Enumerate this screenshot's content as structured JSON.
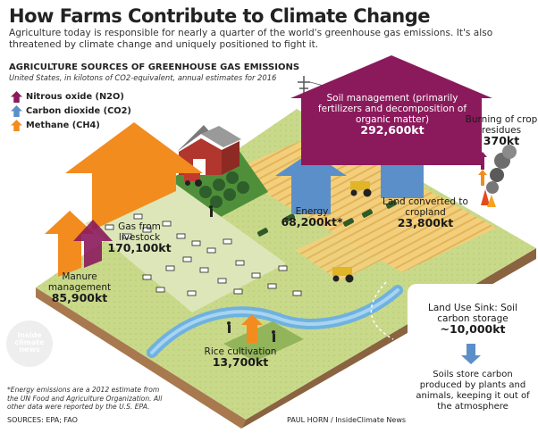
{
  "title": "How Farms Contribute to Climate Change",
  "intro": "Agriculture today is responsible for nearly a quarter of the world's greenhouse gas emissions. It's also threatened by climate change and uniquely positioned to fight it.",
  "section_title": "AGRICULTURE SOURCES OF GREENHOUSE GAS EMISSIONS",
  "section_subtitle": "United States, in kilotons of CO2-equivalent, annual estimates for 2016",
  "legend": {
    "nitrous": "Nitrous oxide (N2O)",
    "carbon": "Carbon dioxide (CO2)",
    "methane": "Methane (CH4)"
  },
  "colors": {
    "nitrous": "#8b1a5c",
    "carbon": "#5b8fc9",
    "methane": "#f28c1e"
  },
  "sources": {
    "soil": {
      "label": "Soil management (primarily fertilizers and decomposition of organic matter)",
      "value": "292,600kt",
      "gas": "nitrous"
    },
    "burning": {
      "label": "Burning of crop residues",
      "value": "370kt",
      "gas": "nitrous"
    },
    "energy": {
      "label": "Energy",
      "value": "68,200kt*",
      "gas": "carbon"
    },
    "land": {
      "label": "Land converted to cropland",
      "value": "23,800kt",
      "gas": "carbon"
    },
    "livestock": {
      "label": "Gas from livestock",
      "value": "170,100kt",
      "gas": "methane"
    },
    "manure": {
      "label": "Manure management",
      "value": "85,900kt",
      "gas": "methane+nitrous"
    },
    "rice": {
      "label": "Rice cultivation",
      "value": "13,700kt",
      "gas": "methane"
    }
  },
  "sink": {
    "label": "Land Use Sink: Soil carbon storage",
    "value": "~10,000kt",
    "description": "Soils store carbon produced by plants and animals, keeping it out of the atmosphere"
  },
  "watermark": "inside climate news",
  "footnote": "*Energy emissions are a 2012 estimate from the UN Food and Agriculture Organization. All other data were reported by the U.S. EPA.",
  "sources_line": "SOURCES: EPA; FAO",
  "credit": "PAUL HORN / InsideClimate News"
}
